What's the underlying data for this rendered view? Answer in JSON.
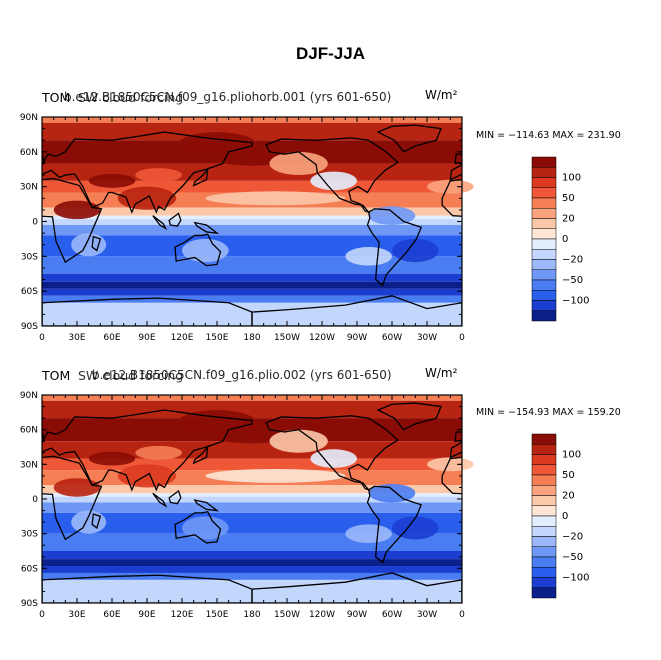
{
  "title": "DJF-JJA",
  "colors": [
    "#0b1f8a",
    "#1b3ed0",
    "#2a5fee",
    "#4a7cf2",
    "#6f98f6",
    "#9bb8fa",
    "#c3d6fc",
    "#e3eefe",
    "#fde6d5",
    "#fcc8aa",
    "#f9a47e",
    "#f57e55",
    "#ee5836",
    "#db3a1f",
    "#b82412",
    "#8a0c06"
  ],
  "colorbar": {
    "labels": [
      "100",
      "50",
      "20",
      "0",
      "−20",
      "−50",
      "−100"
    ]
  },
  "axes": {
    "lat_ticks": [
      "90N",
      "60N",
      "30N",
      "0",
      "30S",
      "60S",
      "90S"
    ],
    "lon_ticks": [
      "0",
      "30E",
      "60E",
      "90E",
      "120E",
      "150E",
      "180",
      "150W",
      "120W",
      "90W",
      "60W",
      "30W",
      "0"
    ]
  },
  "panels": [
    {
      "left_title": "TOM",
      "case_title": "b.e12.B1850C5CN.f09_g16.pliohorb.001 (yrs 601-650)",
      "var_title": "SW cloud forcing",
      "units": "W/m²",
      "minmax": "MIN = −114.63 MAX = 231.90"
    },
    {
      "left_title": "TOM",
      "case_title": "b.e12.B1850C5CN.f09_g16.plio.002 (yrs 601-650)",
      "var_title": "SW cloud forcing",
      "units": "W/m²",
      "minmax": "MIN = −154.93 MAX = 159.20"
    }
  ],
  "chart_data": [
    {
      "type": "heatmap",
      "title": "DJF-JJA",
      "xlabel": "",
      "ylabel": "",
      "x_range": [
        0,
        360
      ],
      "y_range": [
        -90,
        90
      ],
      "colorbar_levels": [
        -100,
        -50,
        -20,
        0,
        20,
        50,
        100
      ],
      "min": -114.63,
      "max": 231.9,
      "zonal_profile": {
        "lat": [
          80,
          60,
          40,
          20,
          0,
          -20,
          -40,
          -55,
          -65,
          -80
        ],
        "value": [
          90,
          110,
          80,
          40,
          0,
          -45,
          -40,
          -70,
          -40,
          -15
        ]
      }
    },
    {
      "type": "heatmap",
      "title": "DJF-JJA",
      "xlabel": "",
      "ylabel": "",
      "x_range": [
        0,
        360
      ],
      "y_range": [
        -90,
        90
      ],
      "colorbar_levels": [
        -100,
        -50,
        -20,
        0,
        20,
        50,
        100
      ],
      "min": -154.93,
      "max": 159.2,
      "zonal_profile": {
        "lat": [
          80,
          60,
          40,
          20,
          0,
          -20,
          -40,
          -55,
          -65,
          -80
        ],
        "value": [
          70,
          100,
          70,
          35,
          0,
          -55,
          -45,
          -80,
          -45,
          -15
        ]
      }
    }
  ]
}
